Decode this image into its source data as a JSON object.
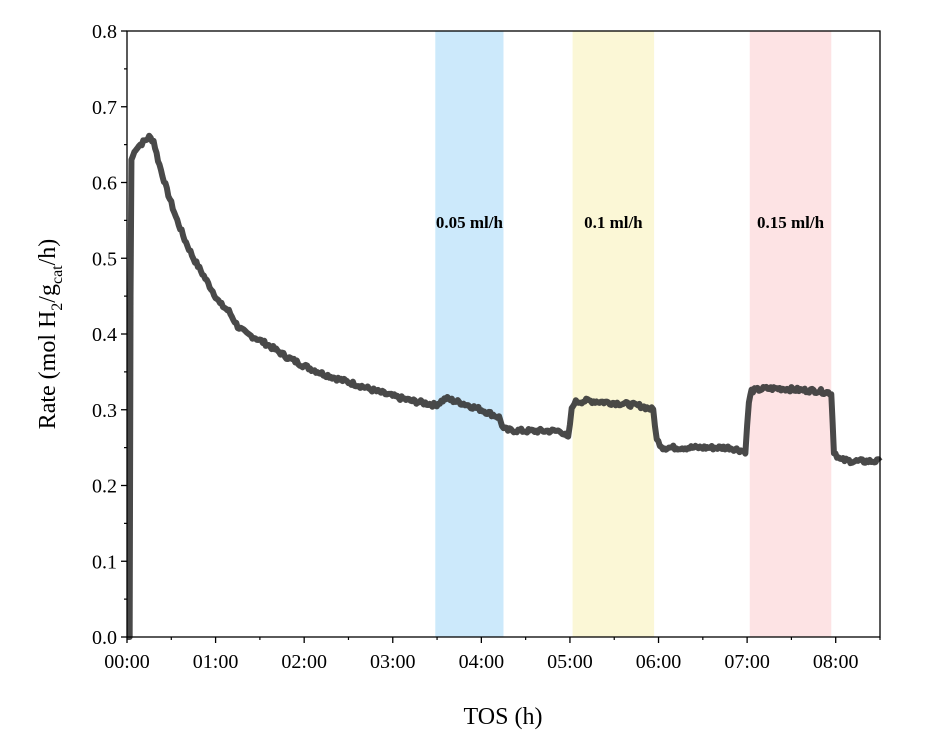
{
  "chart_data": {
    "type": "line",
    "title": "",
    "xlabel": "TOS (h)",
    "ylabel": "Rate (mol H2/gcat/h)",
    "ylabel_parts": {
      "prefix": "Rate (mol H",
      "sub1": "2",
      "mid": "/g",
      "sub2": "cat",
      "suffix": "/h)"
    },
    "xlim": [
      0,
      8.5
    ],
    "ylim": [
      0,
      0.8
    ],
    "x_ticks": [
      {
        "value": 0,
        "label": "00:00"
      },
      {
        "value": 1,
        "label": "01:00"
      },
      {
        "value": 2,
        "label": "02:00"
      },
      {
        "value": 3,
        "label": "03:00"
      },
      {
        "value": 4,
        "label": "04:00"
      },
      {
        "value": 5,
        "label": "05:00"
      },
      {
        "value": 6,
        "label": "06:00"
      },
      {
        "value": 7,
        "label": "07:00"
      },
      {
        "value": 8,
        "label": "08:00"
      }
    ],
    "y_ticks": [
      {
        "value": 0.0,
        "label": "0.0"
      },
      {
        "value": 0.1,
        "label": "0.1"
      },
      {
        "value": 0.2,
        "label": "0.2"
      },
      {
        "value": 0.3,
        "label": "0.3"
      },
      {
        "value": 0.4,
        "label": "0.4"
      },
      {
        "value": 0.5,
        "label": "0.5"
      },
      {
        "value": 0.6,
        "label": "0.6"
      },
      {
        "value": 0.7,
        "label": "0.7"
      },
      {
        "value": 0.8,
        "label": "0.8"
      }
    ],
    "bands": [
      {
        "x_start": 3.48,
        "x_end": 4.25,
        "label": "0.05 ml/h",
        "color": "#cce9fb"
      },
      {
        "x_start": 5.03,
        "x_end": 5.95,
        "label": "0.1 ml/h",
        "color": "#fbf7d6"
      },
      {
        "x_start": 7.03,
        "x_end": 7.95,
        "label": "0.15 ml/h",
        "color": "#fde3e4"
      }
    ],
    "label_y": 0.54,
    "series": [
      {
        "name": "Rate",
        "color": "#3a3a3a",
        "x": [
          0,
          0.03,
          0.04,
          0.05,
          0.1,
          0.2,
          0.25,
          0.3,
          0.35,
          0.45,
          0.55,
          0.65,
          0.75,
          0.85,
          0.95,
          1.05,
          1.15,
          1.25,
          1.35,
          1.45,
          1.6,
          1.8,
          2.0,
          2.2,
          2.4,
          2.6,
          2.8,
          3.0,
          3.2,
          3.4,
          3.48,
          3.6,
          3.8,
          4.0,
          4.2,
          4.25,
          4.3,
          4.5,
          4.7,
          4.9,
          4.98,
          5.02,
          5.05,
          5.2,
          5.4,
          5.6,
          5.8,
          5.94,
          5.98,
          6.05,
          6.2,
          6.4,
          6.6,
          6.8,
          6.98,
          7.02,
          7.05,
          7.2,
          7.4,
          7.6,
          7.8,
          7.95,
          7.98,
          8.05,
          8.2,
          8.35,
          8.5
        ],
        "y": [
          0.0,
          0.0,
          0.45,
          0.63,
          0.645,
          0.655,
          0.66,
          0.655,
          0.63,
          0.59,
          0.555,
          0.525,
          0.5,
          0.48,
          0.46,
          0.44,
          0.43,
          0.41,
          0.4,
          0.395,
          0.385,
          0.37,
          0.358,
          0.348,
          0.34,
          0.333,
          0.325,
          0.318,
          0.312,
          0.308,
          0.306,
          0.315,
          0.308,
          0.3,
          0.29,
          0.275,
          0.273,
          0.272,
          0.272,
          0.272,
          0.262,
          0.3,
          0.31,
          0.312,
          0.31,
          0.308,
          0.305,
          0.3,
          0.26,
          0.25,
          0.25,
          0.25,
          0.25,
          0.25,
          0.245,
          0.31,
          0.325,
          0.328,
          0.328,
          0.326,
          0.325,
          0.322,
          0.245,
          0.234,
          0.232,
          0.232,
          0.232
        ]
      }
    ]
  }
}
